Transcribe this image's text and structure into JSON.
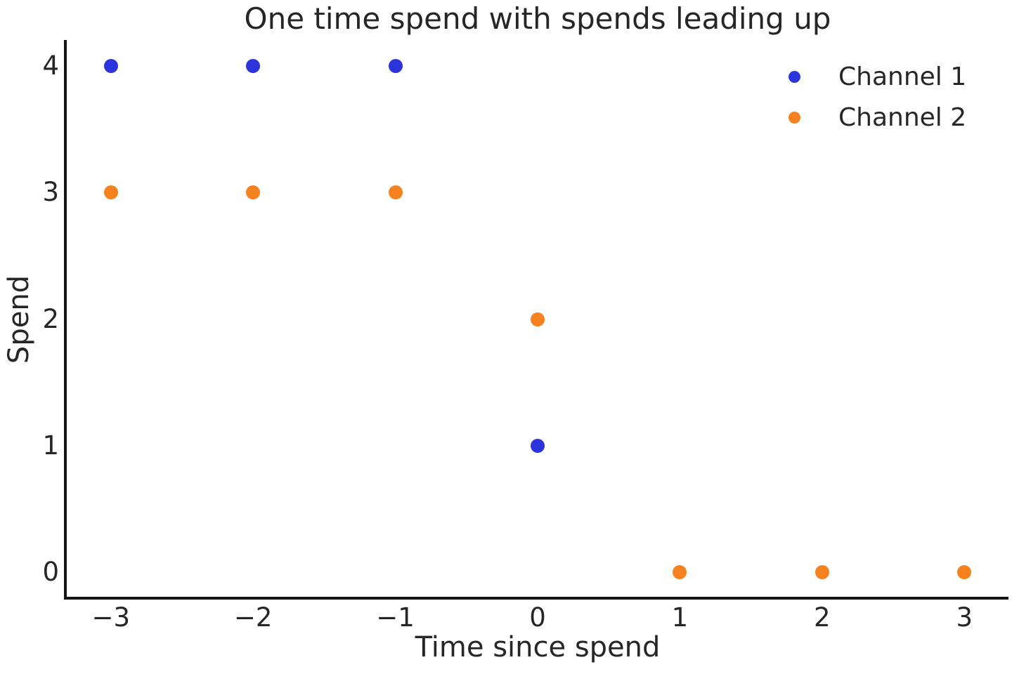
{
  "chart_data": {
    "type": "scatter",
    "title": "One time spend with spends leading up",
    "xlabel": "Time since spend",
    "ylabel": "Spend",
    "xlim": [
      -3.31,
      3.31
    ],
    "ylim": [
      -0.194,
      4.206
    ],
    "grid": false,
    "legend_position": "upper right",
    "xticks": [
      {
        "value": -3,
        "label": "−3"
      },
      {
        "value": -2,
        "label": "−2"
      },
      {
        "value": -1,
        "label": "−1"
      },
      {
        "value": 0,
        "label": "0"
      },
      {
        "value": 1,
        "label": "1"
      },
      {
        "value": 2,
        "label": "2"
      },
      {
        "value": 3,
        "label": "3"
      }
    ],
    "yticks": [
      {
        "value": 0,
        "label": "0"
      },
      {
        "value": 1,
        "label": "1"
      },
      {
        "value": 2,
        "label": "2"
      },
      {
        "value": 3,
        "label": "3"
      },
      {
        "value": 4,
        "label": "4"
      }
    ],
    "series": [
      {
        "name": "Channel 1",
        "color": "#2b35db",
        "points": [
          [
            -3,
            4
          ],
          [
            -2,
            4
          ],
          [
            -1,
            4
          ],
          [
            0,
            1
          ]
        ]
      },
      {
        "name": "Channel 2",
        "color": "#f5821f",
        "points": [
          [
            -3,
            3
          ],
          [
            -2,
            3
          ],
          [
            -1,
            3
          ],
          [
            0,
            2
          ],
          [
            1,
            0
          ],
          [
            2,
            0
          ],
          [
            3,
            0
          ]
        ]
      }
    ],
    "colors": {
      "spine": "#141414",
      "text": "#262626",
      "background": "#ffffff"
    }
  }
}
